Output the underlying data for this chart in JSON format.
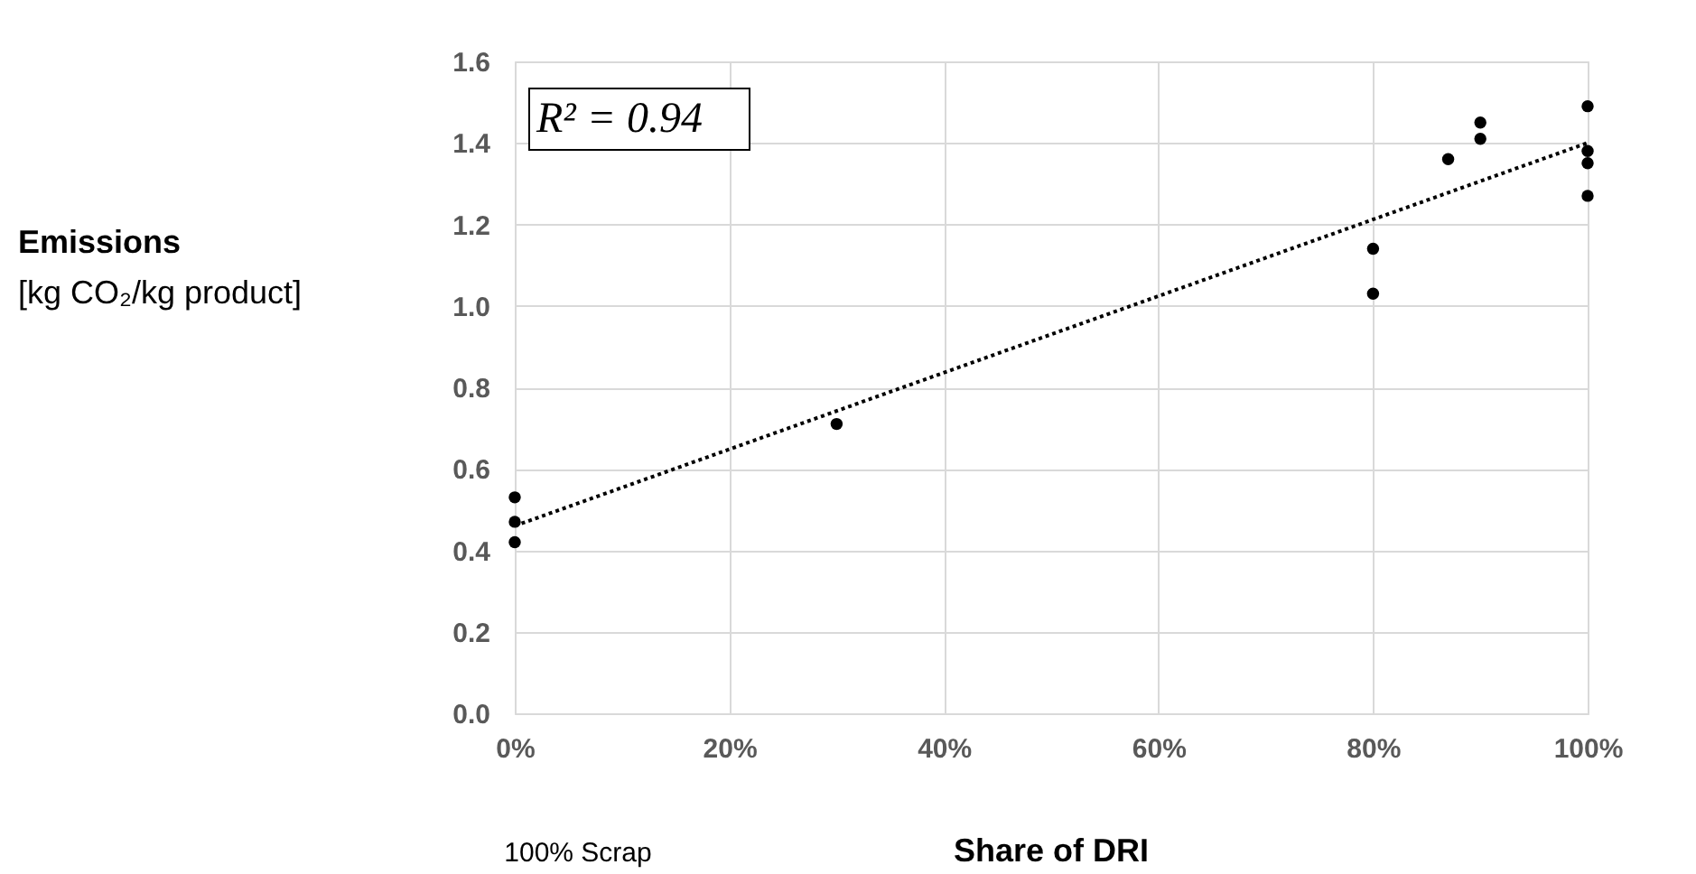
{
  "chart_data": {
    "type": "scatter",
    "xlabel": "Share of DRI",
    "ylabel": "Emissions\n[kg CO₂/kg product]",
    "annotations": [
      "R² = 0.94",
      "100% Scrap"
    ],
    "xlim": [
      0,
      100
    ],
    "xticks": [
      {
        "value": 0,
        "label": "0%"
      },
      {
        "value": 20,
        "label": "20%"
      },
      {
        "value": 40,
        "label": "40%"
      },
      {
        "value": 60,
        "label": "60%"
      },
      {
        "value": 80,
        "label": "80%"
      },
      {
        "value": 100,
        "label": "100%"
      }
    ],
    "ylim": [
      0,
      1.6
    ],
    "yticks": [
      {
        "value": 0,
        "label": "0.0"
      },
      {
        "value": 0.2,
        "label": "0.2"
      },
      {
        "value": 0.4,
        "label": "0.4"
      },
      {
        "value": 0.6,
        "label": "0.6"
      },
      {
        "value": 0.8,
        "label": "0.8"
      },
      {
        "value": 1.0,
        "label": "1.0"
      },
      {
        "value": 1.2,
        "label": "1.2"
      },
      {
        "value": 1.4,
        "label": "1.4"
      },
      {
        "value": 1.6,
        "label": "1.6"
      }
    ],
    "grid": true,
    "marker": "circle",
    "series": [
      {
        "color": "#000000",
        "x": [
          0,
          0,
          0,
          30,
          80,
          80,
          87,
          90,
          90,
          100,
          100,
          100,
          100
        ],
        "values": [
          0.53,
          0.47,
          0.42,
          0.71,
          1.14,
          1.03,
          1.36,
          1.45,
          1.41,
          1.49,
          1.38,
          1.35,
          1.27
        ]
      },
      {
        "type": "line",
        "color": "#000000",
        "line_style": "dotted",
        "marker": "none",
        "x": [
          0,
          100
        ],
        "values": [
          0.46,
          1.4
        ]
      }
    ]
  }
}
